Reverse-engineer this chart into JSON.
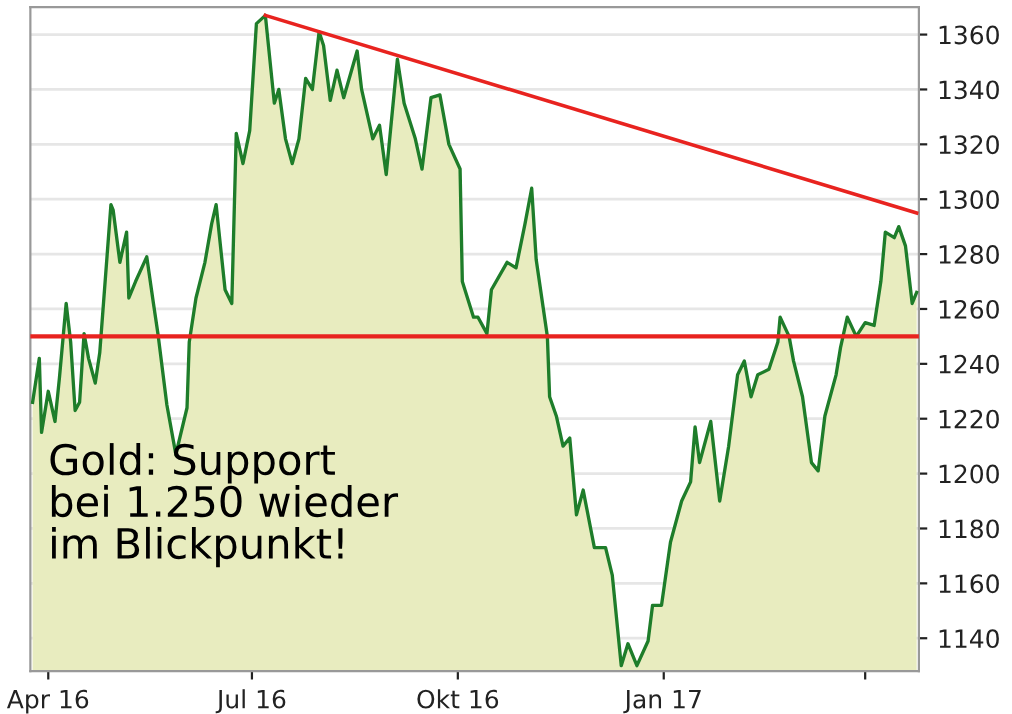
{
  "chart_data": {
    "type": "area",
    "x": [
      "2016-03-25",
      "2016-03-28",
      "2016-03-29",
      "2016-04-01",
      "2016-04-04",
      "2016-04-06",
      "2016-04-09",
      "2016-04-11",
      "2016-04-13",
      "2016-04-15",
      "2016-04-17",
      "2016-04-19",
      "2016-04-22",
      "2016-04-24",
      "2016-04-29",
      "2016-04-30",
      "2016-05-03",
      "2016-05-06",
      "2016-05-07",
      "2016-05-10",
      "2016-05-15",
      "2016-05-18",
      "2016-05-20",
      "2016-05-24",
      "2016-05-28",
      "2016-06-02",
      "2016-06-03",
      "2016-06-06",
      "2016-06-10",
      "2016-06-13",
      "2016-06-15",
      "2016-06-19",
      "2016-06-22",
      "2016-06-24",
      "2016-06-27",
      "2016-06-30",
      "2016-07-03",
      "2016-07-07",
      "2016-07-11",
      "2016-07-13",
      "2016-07-16",
      "2016-07-19",
      "2016-07-22",
      "2016-07-25",
      "2016-07-28",
      "2016-07-31",
      "2016-08-02",
      "2016-08-05",
      "2016-08-08",
      "2016-08-11",
      "2016-08-17",
      "2016-08-19",
      "2016-08-24",
      "2016-08-27",
      "2016-08-30",
      "2016-09-04",
      "2016-09-07",
      "2016-09-12",
      "2016-09-15",
      "2016-09-19",
      "2016-09-23",
      "2016-09-27",
      "2016-10-02",
      "2016-10-03",
      "2016-10-08",
      "2016-10-10",
      "2016-10-14",
      "2016-10-16",
      "2016-10-23",
      "2016-10-27",
      "2016-10-31",
      "2016-11-03",
      "2016-11-05",
      "2016-11-10",
      "2016-11-11",
      "2016-11-14",
      "2016-11-17",
      "2016-11-20",
      "2016-11-23",
      "2016-11-26",
      "2016-12-01",
      "2016-12-06",
      "2016-12-09",
      "2016-12-13",
      "2016-12-16",
      "2016-12-20",
      "2016-12-25",
      "2016-12-27",
      "2016-12-31",
      "2017-01-04",
      "2017-01-09",
      "2017-01-13",
      "2017-01-15",
      "2017-01-17",
      "2017-01-22",
      "2017-01-26",
      "2017-01-30",
      "2017-02-03",
      "2017-02-06",
      "2017-02-09",
      "2017-02-12",
      "2017-02-17",
      "2017-02-21",
      "2017-02-22",
      "2017-02-26",
      "2017-02-28",
      "2017-03-04",
      "2017-03-08",
      "2017-03-11",
      "2017-03-14",
      "2017-03-19",
      "2017-03-21",
      "2017-03-24",
      "2017-03-28",
      "2017-04-01",
      "2017-04-05",
      "2017-04-08",
      "2017-04-10",
      "2017-04-14",
      "2017-04-16",
      "2017-04-19",
      "2017-04-22",
      "2017-04-24"
    ],
    "series": [
      {
        "color": "#e8ecbf",
        "values": [
          1226,
          1242,
          1215,
          1230,
          1219,
          1235,
          1262,
          1248,
          1223,
          1226,
          1251,
          1242,
          1233,
          1244,
          1298,
          1296,
          1277,
          1288,
          1264,
          1270,
          1279,
          1262,
          1251,
          1225,
          1207,
          1224,
          1248,
          1264,
          1277,
          1291,
          1298,
          1267,
          1262,
          1324,
          1313,
          1325,
          1364,
          1367,
          1335,
          1340,
          1322,
          1313,
          1322,
          1344,
          1340,
          1361,
          1356,
          1336,
          1347,
          1337,
          1354,
          1340,
          1322,
          1327,
          1309,
          1351,
          1335,
          1322,
          1311,
          1337,
          1338,
          1320,
          1311,
          1270,
          1257,
          1257,
          1251,
          1267,
          1277,
          1275,
          1291,
          1304,
          1278,
          1250,
          1228,
          1221,
          1210,
          1213,
          1185,
          1194,
          1173,
          1173,
          1163,
          1130,
          1138,
          1130,
          1139,
          1152,
          1152,
          1175,
          1190,
          1197,
          1217,
          1204,
          1219,
          1190,
          1210,
          1236,
          1241,
          1228,
          1236,
          1238,
          1248,
          1257,
          1250,
          1241,
          1228,
          1204,
          1201,
          1221,
          1236,
          1246,
          1257,
          1250,
          1255,
          1254,
          1270,
          1288,
          1286,
          1290,
          1283,
          1262,
          1266
        ]
      },
      {
        "type": "line",
        "color": "#e8231f",
        "x": [
          "2016-07-07",
          "2017-04-24"
        ],
        "values": [
          1367,
          1295
        ]
      }
    ],
    "ref_lines": [
      {
        "axis": "y",
        "value": 1250,
        "color": "#e8231f"
      }
    ],
    "xlim": [
      "2016-03-24",
      "2017-04-25"
    ],
    "xticks": [
      {
        "value": "2016-04-01",
        "label": "Apr 16"
      },
      {
        "value": "2016-07-01",
        "label": "Jul 16"
      },
      {
        "value": "2016-10-01",
        "label": "Okt 16"
      },
      {
        "value": "2017-01-01",
        "label": "Jan 17"
      },
      {
        "value": "2017-04-01",
        "label": null
      }
    ],
    "ylim": [
      1128,
      1370
    ],
    "yticks": [
      1140,
      1160,
      1180,
      1200,
      1220,
      1240,
      1260,
      1280,
      1300,
      1320,
      1340,
      1360
    ],
    "grid": "y",
    "annotations": [
      "Gold: Support\nbei 1.250 wieder\nim Blickpunkt!"
    ]
  }
}
